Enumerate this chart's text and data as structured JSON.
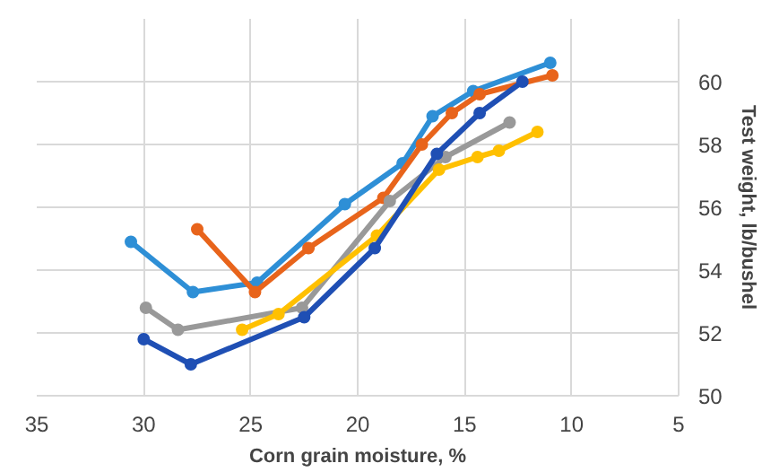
{
  "chart_data": {
    "type": "line",
    "xlabel": "Corn grain moisture, %",
    "ylabel": "Test weight, lb/bushel",
    "xlim": [
      35,
      5
    ],
    "xticks": [
      35,
      30,
      25,
      20,
      15,
      10,
      5
    ],
    "ylim": [
      50,
      62
    ],
    "yticks": [
      50,
      52,
      54,
      56,
      58,
      60
    ],
    "grid": true,
    "marker": "circle",
    "line_style": "solid",
    "series": [
      {
        "color": "#2e8fd6",
        "x": [
          30.6,
          27.7,
          24.7,
          20.6,
          17.9,
          16.5,
          14.6,
          11.0
        ],
        "values": [
          54.9,
          53.3,
          53.6,
          56.1,
          57.4,
          58.9,
          59.7,
          60.6
        ]
      },
      {
        "color": "#e8641b",
        "x": [
          27.5,
          24.8,
          22.3,
          18.8,
          17.0,
          15.6,
          14.3,
          10.9
        ],
        "values": [
          55.3,
          53.3,
          54.7,
          56.3,
          58.0,
          59.0,
          59.6,
          60.2
        ]
      },
      {
        "color": "#999999",
        "x": [
          29.9,
          28.4,
          22.6,
          18.5,
          15.9,
          12.9
        ],
        "values": [
          52.8,
          52.1,
          52.8,
          56.2,
          57.6,
          58.7
        ]
      },
      {
        "color": "#ffc000",
        "x": [
          25.4,
          23.7,
          19.1,
          16.2,
          14.4,
          13.4,
          11.6
        ],
        "values": [
          52.1,
          52.6,
          55.1,
          57.2,
          57.6,
          57.8,
          58.4
        ]
      },
      {
        "color": "#1f4fb4",
        "x": [
          30.0,
          27.8,
          22.5,
          19.2,
          16.3,
          14.3,
          12.3
        ],
        "values": [
          51.8,
          51.0,
          52.5,
          54.7,
          57.7,
          59.0,
          60.0
        ]
      }
    ]
  }
}
